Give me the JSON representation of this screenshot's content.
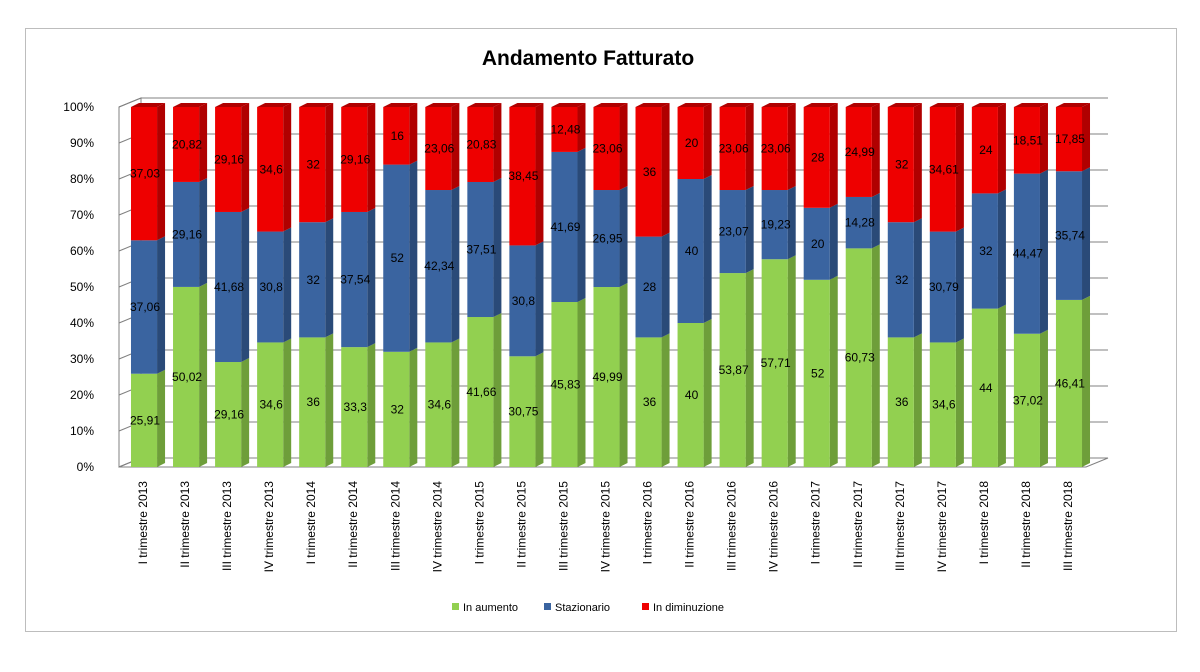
{
  "chart_data": {
    "type": "bar",
    "stacked": "percent",
    "title": "Andamento Fatturato",
    "xlabel": "",
    "ylabel": "",
    "ylim": [
      0,
      100
    ],
    "y_ticks": [
      "0%",
      "10%",
      "20%",
      "30%",
      "40%",
      "50%",
      "60%",
      "70%",
      "80%",
      "90%",
      "100%"
    ],
    "grid": true,
    "legend_position": "bottom",
    "categories": [
      "I trimestre 2013",
      "II trimestre 2013",
      "III trimestre 2013",
      "IV trimestre 2013",
      "I trimestre 2014",
      "II trimestre 2014",
      "III trimestre 2014",
      "IV trimestre 2014",
      "I trimestre 2015",
      "II trimestre 2015",
      "III trimestre 2015",
      "IV trimestre 2015",
      "I trimestre 2016",
      "II trimestre 2016",
      "III trimestre 2016",
      "IV trimestre 2016",
      "I trimestre 2017",
      "II trimestre 2017",
      "III trimestre 2017",
      "IV trimestre 2017",
      "I trimestre 2018",
      "II trimestre 2018",
      "III trimestre 2018"
    ],
    "series": [
      {
        "name": "In aumento",
        "color": "#92d050",
        "side_color": "#6e9e3a",
        "values": [
          25.91,
          50.02,
          29.16,
          34.6,
          36,
          33.3,
          32,
          34.6,
          41.66,
          30.75,
          45.83,
          49.99,
          36,
          40,
          53.87,
          57.71,
          52,
          60.73,
          36,
          34.6,
          44,
          37.02,
          46.41
        ],
        "labels": [
          "25,91",
          "50,02",
          "29,16",
          "34,6",
          "36",
          "33,3",
          "32",
          "34,6",
          "41,66",
          "30,75",
          "45,83",
          "49,99",
          "36",
          "40",
          "53,87",
          "57,71",
          "52",
          "60,73",
          "36",
          "34,6",
          "44",
          "37,02",
          "46,41"
        ]
      },
      {
        "name": "Stazionario",
        "color": "#3a64a0",
        "side_color": "#2a4a78",
        "values": [
          37.06,
          29.16,
          41.68,
          30.8,
          32,
          37.54,
          52,
          42.34,
          37.51,
          30.8,
          41.69,
          26.95,
          28,
          40,
          23.07,
          19.23,
          20,
          14.28,
          32,
          30.79,
          32,
          44.47,
          35.74
        ],
        "labels": [
          "37,06",
          "29,16",
          "41,68",
          "30,8",
          "32",
          "37,54",
          "52",
          "42,34",
          "37,51",
          "30,8",
          "41,69",
          "26,95",
          "28",
          "40",
          "23,07",
          "19,23",
          "20",
          "14,28",
          "32",
          "30,79",
          "32",
          "44,47",
          "35,74"
        ]
      },
      {
        "name": "In diminuzione",
        "color": "#ee0000",
        "side_color": "#b00000",
        "values": [
          37.03,
          20.82,
          29.16,
          34.6,
          32,
          29.16,
          16,
          23.06,
          20.83,
          38.45,
          12.48,
          23.06,
          36,
          20,
          23.06,
          23.06,
          28,
          24.99,
          32,
          34.61,
          24,
          18.51,
          17.85
        ],
        "labels": [
          "37,03",
          "20,82",
          "29,16",
          "34,6",
          "32",
          "29,16",
          "16",
          "23,06",
          "20,83",
          "38,45",
          "12,48",
          "23,06",
          "36",
          "20",
          "23,06",
          "23,06",
          "28",
          "24,99",
          "32",
          "34,61",
          "24",
          "18,51",
          "17,85"
        ]
      }
    ]
  }
}
